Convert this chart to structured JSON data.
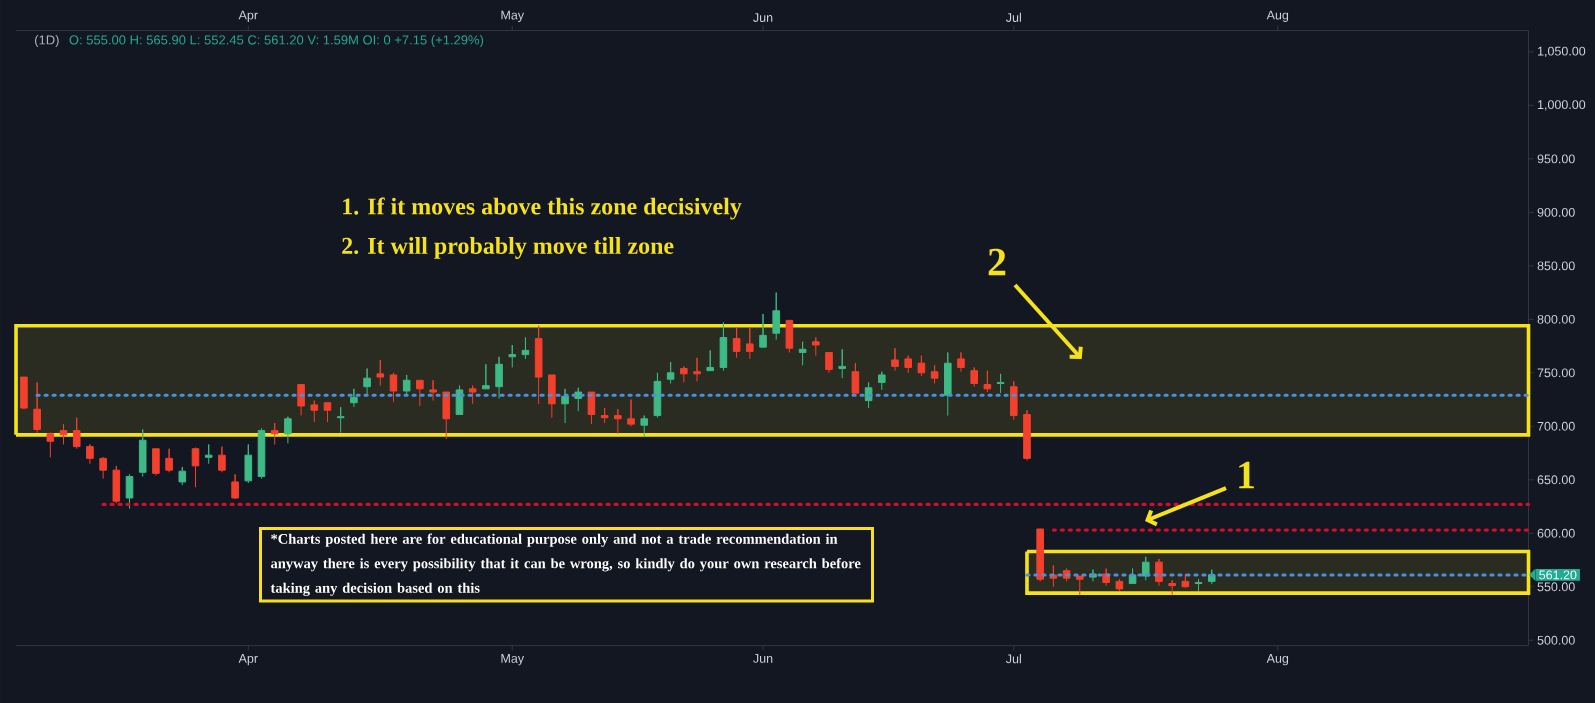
{
  "chart_data": {
    "type": "candlestick",
    "title": "(1D)",
    "subtitle": "O: 555.00 H: 565.90 L: 552.45 C: 561.20 V: 1.59M OI: 0 +7.15 (+1.29%)",
    "categories": [
      null,
      null,
      null,
      null,
      null,
      null,
      null,
      null,
      null,
      null,
      null,
      null,
      null,
      null,
      null,
      null,
      null,
      "Apr",
      null,
      null,
      null,
      null,
      null,
      null,
      null,
      null,
      null,
      null,
      null,
      null,
      null,
      null,
      null,
      null,
      null,
      null,
      null,
      "May",
      null,
      null,
      null,
      null,
      null,
      null,
      null,
      null,
      null,
      null,
      null,
      null,
      null,
      null,
      null,
      null,
      null,
      null,
      "Jun",
      null,
      null,
      null,
      null,
      null,
      null,
      null,
      null,
      null,
      null,
      null,
      null,
      null,
      null,
      null,
      null,
      null,
      null,
      "Jul",
      null,
      null,
      null,
      null,
      null,
      null,
      null,
      null,
      null,
      null,
      null,
      null,
      null,
      null,
      null,
      null,
      null,
      null,
      null,
      "Aug",
      null,
      null,
      null,
      null,
      null,
      null,
      null,
      null,
      null,
      null,
      null,
      null,
      null,
      null,
      null,
      null,
      null,
      null,
      null
    ],
    "ohlc": [
      [
        746,
        746,
        716,
        717
      ],
      [
        716,
        741,
        694,
        697
      ],
      [
        693,
        694,
        671,
        686
      ],
      [
        696,
        702,
        683,
        692
      ],
      [
        696,
        708,
        679,
        681
      ],
      [
        681,
        683,
        665,
        670
      ],
      [
        670,
        671,
        651,
        659
      ],
      [
        659,
        663,
        628,
        630
      ],
      [
        633,
        655,
        623,
        653
      ],
      [
        657,
        697,
        653,
        687
      ],
      [
        679,
        679,
        654,
        656
      ],
      [
        670,
        679,
        657,
        659
      ],
      [
        648,
        662,
        645,
        658
      ],
      [
        679,
        680,
        643,
        663
      ],
      [
        671,
        683,
        665,
        673
      ],
      [
        673,
        681,
        657,
        659
      ],
      [
        648,
        655,
        632,
        633
      ],
      [
        649,
        683,
        647,
        673
      ],
      [
        653,
        698,
        651,
        696
      ],
      [
        696,
        703,
        683,
        693
      ],
      [
        693,
        709,
        684,
        707
      ],
      [
        739,
        739,
        710,
        719
      ],
      [
        720,
        724,
        704,
        715
      ],
      [
        722,
        722,
        704,
        715
      ],
      [
        708,
        718,
        694,
        709
      ],
      [
        722,
        735,
        718,
        727
      ],
      [
        737,
        754,
        729,
        745
      ],
      [
        749,
        762,
        738,
        746
      ],
      [
        748,
        750,
        723,
        733
      ],
      [
        733,
        748,
        729,
        743
      ],
      [
        743,
        743,
        719,
        735
      ],
      [
        734,
        743,
        724,
        732
      ],
      [
        732,
        732,
        688,
        707
      ],
      [
        711,
        738,
        711,
        734
      ],
      [
        735,
        738,
        721,
        732
      ],
      [
        735,
        758,
        735,
        738
      ],
      [
        737,
        765,
        726,
        758
      ],
      [
        765,
        776,
        755,
        767
      ],
      [
        767,
        783,
        763,
        771
      ],
      [
        782,
        794,
        721,
        746
      ],
      [
        748,
        748,
        708,
        721
      ],
      [
        721,
        735,
        703,
        728
      ],
      [
        726,
        736,
        714,
        732
      ],
      [
        732,
        732,
        702,
        711
      ],
      [
        710,
        717,
        703,
        708
      ],
      [
        710,
        716,
        693,
        707
      ],
      [
        707,
        725,
        700,
        702
      ],
      [
        701,
        710,
        690,
        707
      ],
      [
        710,
        750,
        708,
        742
      ],
      [
        744,
        760,
        740,
        750
      ],
      [
        754,
        756,
        741,
        749
      ],
      [
        751,
        764,
        742,
        749
      ],
      [
        752,
        771,
        752,
        755
      ],
      [
        755,
        797,
        752,
        783
      ],
      [
        782,
        792,
        764,
        770
      ],
      [
        777,
        792,
        763,
        770
      ],
      [
        774,
        805,
        774,
        785
      ],
      [
        787,
        825,
        781,
        808
      ],
      [
        799,
        799,
        769,
        773
      ],
      [
        769,
        779,
        757,
        772
      ],
      [
        779,
        783,
        766,
        776
      ],
      [
        769,
        769,
        750,
        753
      ],
      [
        754,
        772,
        745,
        756
      ],
      [
        751,
        759,
        731,
        731
      ],
      [
        724,
        741,
        717,
        736
      ],
      [
        741,
        751,
        734,
        748
      ],
      [
        762,
        773,
        752,
        756
      ],
      [
        763,
        766,
        750,
        755
      ],
      [
        759,
        766,
        747,
        750
      ],
      [
        751,
        757,
        740,
        745
      ],
      [
        729,
        769,
        710,
        759
      ],
      [
        763,
        769,
        751,
        755
      ],
      [
        752,
        755,
        737,
        740
      ],
      [
        739,
        752,
        732,
        735
      ],
      [
        740,
        749,
        731,
        741
      ],
      [
        737,
        742,
        706,
        710
      ],
      [
        711,
        715,
        668,
        670
      ],
      [
        604,
        604,
        555,
        557
      ],
      [
        561,
        570,
        550,
        558
      ],
      [
        565,
        567,
        555,
        558
      ],
      [
        560,
        560,
        542,
        557
      ],
      [
        559,
        566,
        555,
        562
      ],
      [
        562,
        567,
        551,
        554
      ],
      [
        555,
        557,
        546,
        548
      ],
      [
        553,
        567,
        553,
        561
      ],
      [
        560,
        578,
        556,
        573
      ],
      [
        573,
        576,
        551,
        555
      ],
      [
        553,
        556,
        542,
        551
      ],
      [
        555,
        562,
        549,
        550
      ],
      [
        553,
        557,
        546,
        554
      ],
      [
        555,
        565.9,
        552.45,
        561.2
      ],
      null,
      null,
      null,
      null,
      null,
      null,
      null,
      null,
      null,
      null,
      null,
      null,
      null,
      null,
      null,
      null,
      null,
      null,
      null,
      null,
      null,
      null,
      null,
      null
    ],
    "colors": [
      "#f2402d",
      "#f2402d",
      "#f2402d",
      "#f2402d",
      "#f2402d",
      "#f2402d",
      "#f2402d",
      "#f2402d",
      "#3dba85",
      "#3dba85",
      "#f2402d",
      "#f2402d",
      "#3dba85",
      "#f2402d",
      "#3dba85",
      "#f2402d",
      "#f2402d",
      "#3dba85",
      "#3dba85",
      "#f2402d",
      "#3dba85",
      "#f2402d",
      "#f2402d",
      "#f2402d",
      "#3dba85",
      "#3dba85",
      "#3dba85",
      "#f2402d",
      "#f2402d",
      "#3dba85",
      "#f2402d",
      "#f2402d",
      "#f2402d",
      "#3dba85",
      "#f2402d",
      "#3dba85",
      "#3dba85",
      "#3dba85",
      "#3dba85",
      "#f2402d",
      "#f2402d",
      "#3dba85",
      "#3dba85",
      "#f2402d",
      "#f2402d",
      "#f2402d",
      "#f2402d",
      "#3dba85",
      "#3dba85",
      "#3dba85",
      "#f2402d",
      "#f2402d",
      "#3dba85",
      "#3dba85",
      "#f2402d",
      "#f2402d",
      "#3dba85",
      "#3dba85",
      "#f2402d",
      "#3dba85",
      "#f2402d",
      "#f2402d",
      "#3dba85",
      "#f2402d",
      "#3dba85",
      "#3dba85",
      "#f2402d",
      "#f2402d",
      "#f2402d",
      "#f2402d",
      "#3dba85",
      "#f2402d",
      "#f2402d",
      "#f2402d",
      "#3dba85",
      "#f2402d",
      "#f2402d",
      "#f2402d",
      "#f2402d",
      "#f2402d",
      "#f2402d",
      "#3dba85",
      "#f2402d",
      "#f2402d",
      "#3dba85",
      "#3dba85",
      "#f2402d",
      "#f2402d",
      "#f2402d",
      "#3dba85",
      "#3dba85",
      null,
      null,
      null,
      null,
      null,
      null,
      null,
      null,
      null,
      null,
      null,
      null,
      null,
      null,
      null,
      null,
      null,
      null,
      null,
      null,
      null,
      null,
      null,
      null
    ],
    "bands": [
      {
        "axis": "y",
        "from": 692,
        "to": 794,
        "color": "#f5e21b"
      }
    ],
    "series": [
      {
        "type": "line",
        "color": "#4a8fe7",
        "line_style": "dotted",
        "values": [
          null,
          729,
          729,
          729,
          729,
          729,
          729,
          729,
          729,
          729,
          729,
          729,
          729,
          729,
          729,
          729,
          729,
          729,
          729,
          729,
          729,
          729,
          729,
          729,
          729,
          729,
          729,
          729,
          729,
          729,
          729,
          729,
          729,
          729,
          729,
          729,
          729,
          729,
          729,
          729,
          729,
          729,
          729,
          729,
          729,
          729,
          729,
          729,
          729,
          729,
          729,
          729,
          729,
          729,
          729,
          729,
          729,
          729,
          729,
          729,
          729,
          729,
          729,
          729,
          729,
          729,
          729,
          729,
          729,
          729,
          729,
          729,
          729,
          729,
          729,
          729,
          729,
          729,
          729,
          729,
          729,
          729,
          729,
          729,
          729,
          729,
          729,
          729,
          729,
          729,
          729,
          729,
          729,
          729,
          729,
          729,
          729,
          729,
          729,
          729,
          729,
          729,
          729,
          729,
          729,
          729,
          729,
          729,
          729,
          729,
          729,
          729,
          729,
          729,
          729
        ]
      },
      {
        "type": "line",
        "color": "#d0102c",
        "line_style": "dotted",
        "values": [
          null,
          null,
          null,
          null,
          null,
          null,
          627,
          627,
          627,
          627,
          627,
          627,
          627,
          627,
          627,
          627,
          627,
          627,
          627,
          627,
          627,
          627,
          627,
          627,
          627,
          627,
          627,
          627,
          627,
          627,
          627,
          627,
          627,
          627,
          627,
          627,
          627,
          627,
          627,
          627,
          627,
          627,
          627,
          627,
          627,
          627,
          627,
          627,
          627,
          627,
          627,
          627,
          627,
          627,
          627,
          627,
          627,
          627,
          627,
          627,
          627,
          627,
          627,
          627,
          627,
          627,
          627,
          627,
          627,
          627,
          627,
          627,
          627,
          627,
          627,
          627,
          627,
          627,
          627,
          627,
          627,
          627,
          627,
          627,
          627,
          627,
          627,
          627,
          627,
          627,
          627,
          627,
          627,
          627,
          627,
          627,
          627,
          627,
          627,
          627,
          627,
          627,
          627,
          627,
          627,
          627,
          627,
          627,
          627,
          627,
          627,
          627,
          627,
          627,
          627
        ]
      },
      {
        "type": "line",
        "color": "#d0102c",
        "line_style": "dotted",
        "values": [
          null,
          null,
          null,
          null,
          null,
          null,
          null,
          null,
          null,
          null,
          null,
          null,
          null,
          null,
          null,
          null,
          null,
          null,
          null,
          null,
          null,
          null,
          null,
          null,
          null,
          null,
          null,
          null,
          null,
          null,
          null,
          null,
          null,
          null,
          null,
          null,
          null,
          null,
          null,
          null,
          null,
          null,
          null,
          null,
          null,
          null,
          null,
          null,
          null,
          null,
          null,
          null,
          null,
          null,
          null,
          null,
          null,
          null,
          null,
          null,
          null,
          null,
          null,
          null,
          null,
          null,
          null,
          null,
          null,
          null,
          null,
          null,
          null,
          null,
          null,
          null,
          null,
          null,
          603,
          603,
          603,
          603,
          603,
          603,
          603,
          603,
          603,
          603,
          603,
          603,
          603,
          603,
          603,
          603,
          603,
          603,
          603,
          603,
          603,
          603,
          603,
          603,
          603,
          603,
          603,
          603,
          603,
          603,
          603,
          603,
          603,
          603,
          603,
          603,
          603
        ]
      },
      {
        "type": "line",
        "color": "#f5e21b",
        "line_style": "solid",
        "values": [
          null,
          null,
          null,
          null,
          null,
          null,
          null,
          null,
          null,
          null,
          null,
          null,
          null,
          null,
          null,
          null,
          null,
          null,
          null,
          null,
          null,
          null,
          null,
          null,
          null,
          null,
          null,
          null,
          null,
          null,
          null,
          null,
          null,
          null,
          null,
          null,
          null,
          null,
          null,
          null,
          null,
          null,
          null,
          null,
          null,
          null,
          null,
          null,
          null,
          null,
          null,
          null,
          null,
          null,
          null,
          null,
          null,
          null,
          null,
          null,
          null,
          null,
          null,
          null,
          null,
          null,
          null,
          null,
          null,
          null,
          null,
          null,
          null,
          null,
          null,
          null,
          null,
          null,
          null,
          null,
          null,
          null,
          null,
          null,
          null,
          null,
          null,
          null,
          null,
          null,
          null,
          null,
          null,
          null,
          null,
          null,
          null,
          null,
          null,
          null,
          null,
          null,
          null,
          null,
          null,
          null,
          null,
          null,
          null,
          null,
          null,
          null,
          null,
          null,
          null
        ],
        "lower": [
          null,
          null,
          null,
          null,
          null,
          null,
          null,
          null,
          null,
          null,
          null,
          null,
          null,
          null,
          null,
          null,
          null,
          null,
          null,
          null,
          null,
          null,
          null,
          null,
          null,
          null,
          null,
          null,
          null,
          null,
          null,
          null,
          null,
          null,
          null,
          null,
          null,
          null,
          null,
          null,
          null,
          null,
          null,
          null,
          null,
          null,
          null,
          null,
          null,
          null,
          null,
          null,
          null,
          null,
          null,
          null,
          null,
          null,
          null,
          null,
          null,
          null,
          null,
          null,
          null,
          null,
          null,
          null,
          null,
          null,
          null,
          null,
          null,
          null,
          null,
          null,
          544,
          544,
          544,
          544,
          544,
          544,
          544,
          544,
          544,
          544,
          544,
          544,
          544,
          544,
          544,
          544,
          544,
          544,
          544,
          544,
          544,
          544,
          544,
          544,
          544,
          544,
          544,
          544,
          544,
          544,
          544,
          544,
          544,
          544,
          544,
          544,
          544,
          544,
          544
        ],
        "upper": [
          null,
          null,
          null,
          null,
          null,
          null,
          null,
          null,
          null,
          null,
          null,
          null,
          null,
          null,
          null,
          null,
          null,
          null,
          null,
          null,
          null,
          null,
          null,
          null,
          null,
          null,
          null,
          null,
          null,
          null,
          null,
          null,
          null,
          null,
          null,
          null,
          null,
          null,
          null,
          null,
          null,
          null,
          null,
          null,
          null,
          null,
          null,
          null,
          null,
          null,
          null,
          null,
          null,
          null,
          null,
          null,
          null,
          null,
          null,
          null,
          null,
          null,
          null,
          null,
          null,
          null,
          null,
          null,
          null,
          null,
          null,
          null,
          null,
          null,
          null,
          null,
          583,
          583,
          583,
          583,
          583,
          583,
          583,
          583,
          583,
          583,
          583,
          583,
          583,
          583,
          583,
          583,
          583,
          583,
          583,
          583,
          583,
          583,
          583,
          583,
          583,
          583,
          583,
          583,
          583,
          583,
          583,
          583,
          583,
          583,
          583,
          583,
          583,
          583,
          583
        ]
      },
      {
        "type": "line",
        "color": "#4a8fe7",
        "line_style": "dotted",
        "values": [
          null,
          null,
          null,
          null,
          null,
          null,
          null,
          null,
          null,
          null,
          null,
          null,
          null,
          null,
          null,
          null,
          null,
          null,
          null,
          null,
          null,
          null,
          null,
          null,
          null,
          null,
          null,
          null,
          null,
          null,
          null,
          null,
          null,
          null,
          null,
          null,
          null,
          null,
          null,
          null,
          null,
          null,
          null,
          null,
          null,
          null,
          null,
          null,
          null,
          null,
          null,
          null,
          null,
          null,
          null,
          null,
          null,
          null,
          null,
          null,
          null,
          null,
          null,
          null,
          null,
          null,
          null,
          null,
          null,
          null,
          null,
          null,
          null,
          null,
          null,
          null,
          561,
          561,
          561,
          561,
          561,
          561,
          561,
          561,
          561,
          561,
          561,
          561,
          561,
          561,
          561,
          561,
          561,
          561,
          561,
          561,
          561,
          561,
          561,
          561,
          561,
          561,
          561,
          561,
          561,
          561,
          561,
          561,
          561,
          561,
          561,
          561,
          561,
          561,
          561
        ]
      }
    ],
    "ylim": [
      495,
      1070
    ],
    "yticks": [
      {
        "value": 500,
        "label": "500.00"
      },
      {
        "value": 550,
        "label": "550.00"
      },
      {
        "value": 600,
        "label": "600.00"
      },
      {
        "value": 650,
        "label": "650.00"
      },
      {
        "value": 700,
        "label": "700.00"
      },
      {
        "value": 750,
        "label": "750.00"
      },
      {
        "value": 800,
        "label": "800.00"
      },
      {
        "value": 850,
        "label": "850.00"
      },
      {
        "value": 900,
        "label": "900.00"
      },
      {
        "value": 950,
        "label": "950.00"
      },
      {
        "value": 1000,
        "label": "1,000.00"
      },
      {
        "value": 1050,
        "label": "1,050.00"
      }
    ],
    "annotations": [
      "1. If it moves above this zone decisively",
      "2. It will probably move till zone",
      "*Charts posted here are for educational purpose only and not a trade recommendation in anyway there is every possibility that it can be wrong, so kindly do your own research before taking any decision based on this",
      "2",
      {
        "text": "1",
        "y": 603
      },
      "561.20"
    ]
  }
}
